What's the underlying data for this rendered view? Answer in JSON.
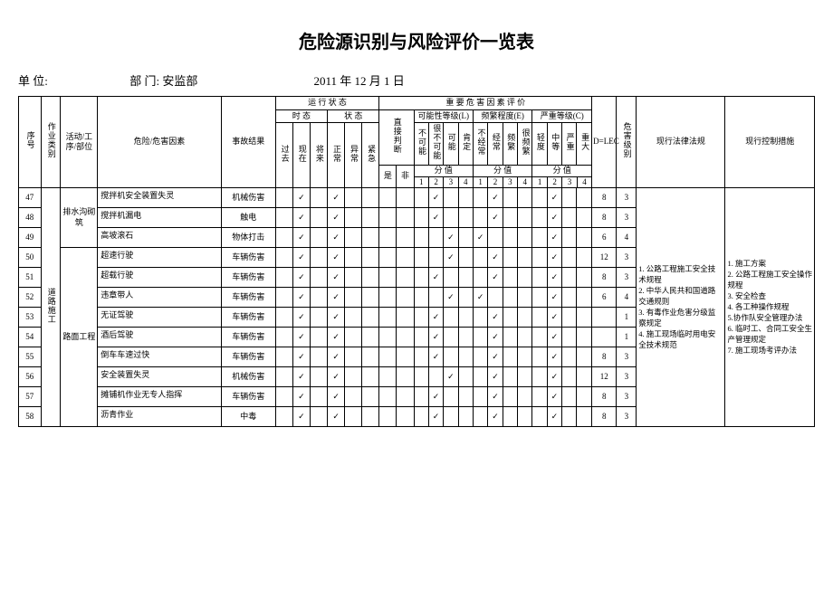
{
  "title": "危险源识别与风险评价一览表",
  "meta": {
    "unit_label": "单 位:",
    "dept_label": "部 门:",
    "dept": "安监部",
    "date": "2011 年 12 月 1 日"
  },
  "head": {
    "seq": "序号",
    "cat": "作业类别",
    "act": "活动/工序/部位",
    "hazard": "危险/危害因素",
    "result": "事故结果",
    "run_state": "运 行 状 态",
    "factor_eval": "重 要 危 害 因 素 评 价",
    "time": "时 态",
    "state": "状 态",
    "direct": "直接判断",
    "yes": "是",
    "no": "非",
    "past": "过去",
    "now": "现在",
    "future": "将来",
    "normal": "正常",
    "abnormal": "异常",
    "emerg": "紧急",
    "L": "可能性等级(L)",
    "E": "频繁程度(E)",
    "C": "严重等级(C)",
    "L_items": [
      "不可能",
      "很不可能",
      "可能",
      "肯定"
    ],
    "E_items": [
      "不经常",
      "经常",
      "频繁",
      "很频繁"
    ],
    "C_items": [
      "轻度",
      "中等",
      "严重",
      "重大"
    ],
    "score": "分 值",
    "ns": [
      "1",
      "2",
      "3",
      "4"
    ],
    "D": "D=LEC",
    "level": "危害级别",
    "law": "现行法律法规",
    "ctrl": "现行控制措施"
  },
  "cat_val": "道路施工",
  "groups": [
    {
      "act": "排水沟砌筑",
      "rows": [
        {
          "seq": "47",
          "haz": "搅拌机安全装置失灵",
          "res": "机械伤害",
          "t": [
            0,
            1,
            0
          ],
          "s": [
            1,
            0,
            0
          ],
          "dir": [
            0,
            0
          ],
          "L": [
            0,
            1,
            0,
            0
          ],
          "E": [
            0,
            1,
            0,
            0
          ],
          "C": [
            0,
            1,
            0,
            0
          ],
          "D": "8",
          "lvl": "3"
        },
        {
          "seq": "48",
          "haz": "搅拌机漏电",
          "res": "触电",
          "t": [
            0,
            1,
            0
          ],
          "s": [
            1,
            0,
            0
          ],
          "dir": [
            0,
            0
          ],
          "L": [
            0,
            1,
            0,
            0
          ],
          "E": [
            0,
            1,
            0,
            0
          ],
          "C": [
            0,
            1,
            0,
            0
          ],
          "D": "8",
          "lvl": "3"
        },
        {
          "seq": "49",
          "haz": "高坡滚石",
          "res": "物体打击",
          "t": [
            0,
            1,
            0
          ],
          "s": [
            1,
            0,
            0
          ],
          "dir": [
            0,
            0
          ],
          "L": [
            0,
            0,
            1,
            0
          ],
          "E": [
            1,
            0,
            0,
            0
          ],
          "C": [
            0,
            1,
            0,
            0
          ],
          "D": "6",
          "lvl": "4"
        }
      ]
    },
    {
      "act": "路面工程",
      "rows": [
        {
          "seq": "50",
          "haz": "超速行驶",
          "res": "车辆伤害",
          "t": [
            0,
            1,
            0
          ],
          "s": [
            1,
            0,
            0
          ],
          "dir": [
            0,
            0
          ],
          "L": [
            0,
            0,
            1,
            0
          ],
          "E": [
            0,
            1,
            0,
            0
          ],
          "C": [
            0,
            1,
            0,
            0
          ],
          "D": "12",
          "lvl": "3"
        },
        {
          "seq": "51",
          "haz": "超载行驶",
          "res": "车辆伤害",
          "t": [
            0,
            1,
            0
          ],
          "s": [
            1,
            0,
            0
          ],
          "dir": [
            0,
            0
          ],
          "L": [
            0,
            1,
            0,
            0
          ],
          "E": [
            0,
            1,
            0,
            0
          ],
          "C": [
            0,
            1,
            0,
            0
          ],
          "D": "8",
          "lvl": "3"
        },
        {
          "seq": "52",
          "haz": "违章带人",
          "res": "车辆伤害",
          "t": [
            0,
            1,
            0
          ],
          "s": [
            1,
            0,
            0
          ],
          "dir": [
            0,
            0
          ],
          "L": [
            0,
            0,
            1,
            0
          ],
          "E": [
            1,
            0,
            0,
            0
          ],
          "C": [
            0,
            1,
            0,
            0
          ],
          "D": "6",
          "lvl": "4"
        },
        {
          "seq": "53",
          "haz": "无证驾驶",
          "res": "车辆伤害",
          "t": [
            0,
            1,
            0
          ],
          "s": [
            1,
            0,
            0
          ],
          "dir": [
            0,
            0
          ],
          "L": [
            0,
            1,
            0,
            0
          ],
          "E": [
            0,
            1,
            0,
            0
          ],
          "C": [
            0,
            1,
            0,
            0
          ],
          "D": "",
          "lvl": "1"
        },
        {
          "seq": "54",
          "haz": "酒后驾驶",
          "res": "车辆伤害",
          "t": [
            0,
            1,
            0
          ],
          "s": [
            1,
            0,
            0
          ],
          "dir": [
            0,
            0
          ],
          "L": [
            0,
            1,
            0,
            0
          ],
          "E": [
            0,
            1,
            0,
            0
          ],
          "C": [
            0,
            1,
            0,
            0
          ],
          "D": "",
          "lvl": "1"
        },
        {
          "seq": "55",
          "haz": "倒车车速过快",
          "res": "车辆伤害",
          "t": [
            0,
            1,
            0
          ],
          "s": [
            1,
            0,
            0
          ],
          "dir": [
            0,
            0
          ],
          "L": [
            0,
            1,
            0,
            0
          ],
          "E": [
            0,
            1,
            0,
            0
          ],
          "C": [
            0,
            1,
            0,
            0
          ],
          "D": "8",
          "lvl": "3"
        },
        {
          "seq": "56",
          "haz": "安全装置失灵",
          "res": "机械伤害",
          "t": [
            0,
            1,
            0
          ],
          "s": [
            1,
            0,
            0
          ],
          "dir": [
            0,
            0
          ],
          "L": [
            0,
            0,
            1,
            0
          ],
          "E": [
            0,
            1,
            0,
            0
          ],
          "C": [
            0,
            1,
            0,
            0
          ],
          "D": "12",
          "lvl": "3"
        },
        {
          "seq": "57",
          "haz": "摊铺机作业无专人指挥",
          "res": "车辆伤害",
          "t": [
            0,
            1,
            0
          ],
          "s": [
            1,
            0,
            0
          ],
          "dir": [
            0,
            0
          ],
          "L": [
            0,
            1,
            0,
            0
          ],
          "E": [
            0,
            1,
            0,
            0
          ],
          "C": [
            0,
            1,
            0,
            0
          ],
          "D": "8",
          "lvl": "3"
        },
        {
          "seq": "58",
          "haz": "沥青作业",
          "res": "中毒",
          "t": [
            0,
            1,
            0
          ],
          "s": [
            1,
            0,
            0
          ],
          "dir": [
            0,
            0
          ],
          "L": [
            0,
            1,
            0,
            0
          ],
          "E": [
            0,
            1,
            0,
            0
          ],
          "C": [
            0,
            1,
            0,
            0
          ],
          "D": "8",
          "lvl": "3"
        }
      ]
    }
  ],
  "laws": [
    "1. 公路工程施工安全技术规程",
    "2. 中华人民共和国道路交通规则",
    "3. 有毒作业危害分级监察规定",
    "4. 施工现场临时用电安全技术规范"
  ],
  "ctrls": [
    "1. 施工方案",
    "2. 公路工程施工安全操作规程",
    "3. 安全检查",
    "4. 各工种操作规程",
    "5.协作队安全管理办法",
    "6. 临时工、合同工安全生产管理规定",
    "7. 施工现场考评办法"
  ]
}
